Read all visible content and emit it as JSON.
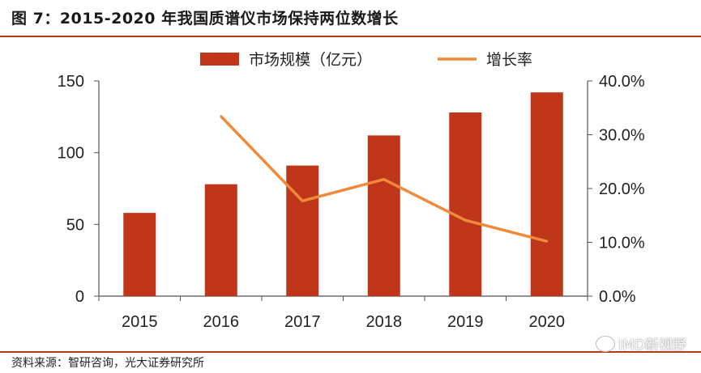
{
  "header": {
    "title": "图 7：2015-2020 年我国质谱仪市场保持两位数增长"
  },
  "footer": {
    "source": "资料来源：智研咨询，光大证券研究所"
  },
  "watermark": {
    "text": "IMD新视野",
    "icon": "wechat-icon"
  },
  "colors": {
    "bar": "#c0361a",
    "line": "#ee8a3a",
    "rule": "#b53a1a"
  },
  "chart_data": {
    "type": "bar",
    "categories": [
      "2015",
      "2016",
      "2017",
      "2018",
      "2019",
      "2020"
    ],
    "series": [
      {
        "name": "市场规模（亿元）",
        "type": "bar",
        "axis": "left",
        "values": [
          58,
          78,
          91,
          112,
          128,
          142
        ]
      },
      {
        "name": "增长率",
        "type": "line",
        "axis": "right",
        "values": [
          null,
          33.4,
          17.7,
          21.7,
          14.1,
          10.2
        ]
      }
    ],
    "ylim_left": [
      0,
      150
    ],
    "yticks_left": [
      "0",
      "50",
      "100",
      "150"
    ],
    "ylim_right": [
      0,
      40
    ],
    "yticks_right": [
      "0.0%",
      "10.0%",
      "20.0%",
      "30.0%",
      "40.0%"
    ],
    "legend": "top-center",
    "grid": false
  }
}
